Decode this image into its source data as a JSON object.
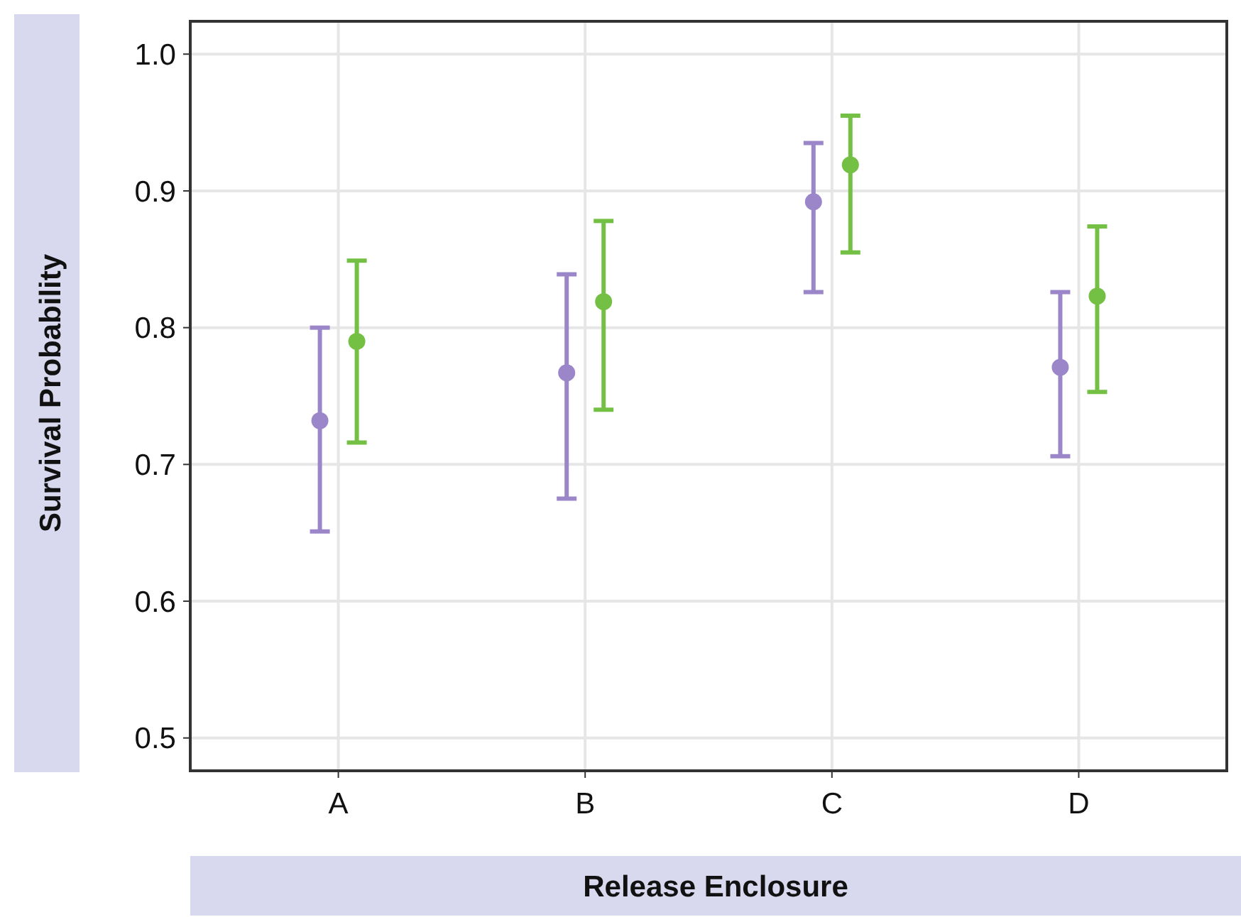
{
  "chart_data": {
    "type": "scatter",
    "xlabel": "Release Enclosure",
    "ylabel": "Survival Probability",
    "categories": [
      "A",
      "B",
      "C",
      "D"
    ],
    "series": [
      {
        "color": "#9a86c8",
        "values": [
          0.732,
          0.767,
          0.892,
          0.771
        ],
        "errors": [
          [
            0.651,
            0.8
          ],
          [
            0.675,
            0.839
          ],
          [
            0.826,
            0.935
          ],
          [
            0.706,
            0.826
          ]
        ]
      },
      {
        "color": "#74c044",
        "values": [
          0.79,
          0.819,
          0.919,
          0.823
        ],
        "errors": [
          [
            0.716,
            0.849
          ],
          [
            0.74,
            0.878
          ],
          [
            0.855,
            0.955
          ],
          [
            0.753,
            0.874
          ]
        ]
      }
    ],
    "ylim": [
      0.476,
      1.024
    ],
    "yticks": [
      {
        "value": 0.5,
        "label": "0.5"
      },
      {
        "value": 0.6,
        "label": "0.6"
      },
      {
        "value": 0.7,
        "label": "0.7"
      },
      {
        "value": 0.8,
        "label": "0.8"
      },
      {
        "value": 0.9,
        "label": "0.9"
      },
      {
        "value": 1.0,
        "label": "1.0"
      }
    ],
    "grid": true,
    "marker": "circle"
  }
}
